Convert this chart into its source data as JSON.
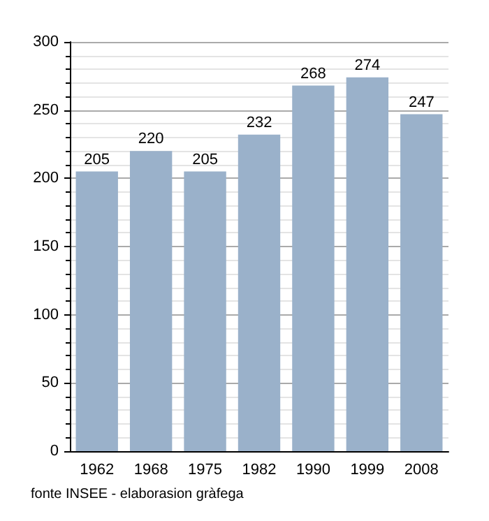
{
  "chart_data": {
    "type": "bar",
    "categories": [
      "1962",
      "1968",
      "1975",
      "1982",
      "1990",
      "1999",
      "2008"
    ],
    "values": [
      205,
      220,
      205,
      232,
      268,
      274,
      247
    ],
    "color": "#9ab1ca",
    "data_labels": true,
    "ylim": [
      0,
      300
    ],
    "yticks": [
      0,
      50,
      100,
      150,
      200,
      250,
      300
    ],
    "grid": "y",
    "annotations": [
      "fonte INSEE - elaborasion gràfega"
    ]
  }
}
